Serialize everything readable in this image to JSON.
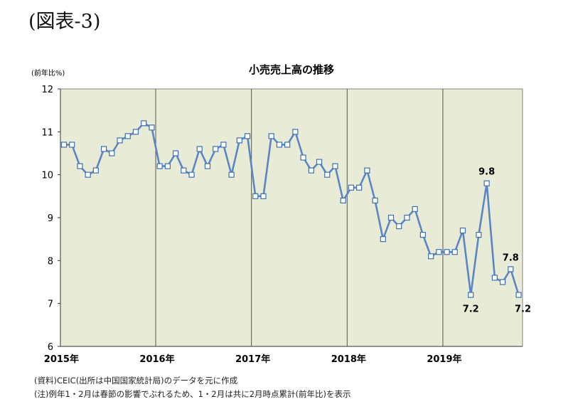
{
  "figure_label": "(図表-3)",
  "notes": [
    "(資料)CEIC(出所は中国国家統計局)のデータを元に作成",
    "(注)例年1・2月は春節の影響でぶれるため、1・2月は共に2月時点累計(前年比)を表示"
  ],
  "colors": {
    "plot_background": "#e8ecd6",
    "line": "#5b86c5",
    "marker_fill": "#ffffff",
    "marker_stroke": "#3d6fb7",
    "axis": "#333333",
    "year_divider": "#555555"
  },
  "chart_data": {
    "type": "line",
    "title": "小売売上高の推移",
    "ylabel": "(前年比%)",
    "ylim": [
      6,
      12
    ],
    "yticks": [
      6,
      7,
      8,
      9,
      10,
      11,
      12
    ],
    "x_tick_labels": [
      "2015年",
      "2016年",
      "2017年",
      "2018年",
      "2019年"
    ],
    "x_tick_index": [
      0,
      12,
      24,
      36,
      48
    ],
    "year_dividers_at_index": [
      12,
      24,
      36,
      48
    ],
    "grid": false,
    "legend": "none",
    "x": [
      "2015-01",
      "2015-02",
      "2015-03",
      "2015-04",
      "2015-05",
      "2015-06",
      "2015-07",
      "2015-08",
      "2015-09",
      "2015-10",
      "2015-11",
      "2015-12",
      "2016-01",
      "2016-02",
      "2016-03",
      "2016-04",
      "2016-05",
      "2016-06",
      "2016-07",
      "2016-08",
      "2016-09",
      "2016-10",
      "2016-11",
      "2016-12",
      "2017-01",
      "2017-02",
      "2017-03",
      "2017-04",
      "2017-05",
      "2017-06",
      "2017-07",
      "2017-08",
      "2017-09",
      "2017-10",
      "2017-11",
      "2017-12",
      "2018-01",
      "2018-02",
      "2018-03",
      "2018-04",
      "2018-05",
      "2018-06",
      "2018-07",
      "2018-08",
      "2018-09",
      "2018-10",
      "2018-11",
      "2018-12",
      "2019-01",
      "2019-02",
      "2019-03",
      "2019-04",
      "2019-05",
      "2019-06",
      "2019-07",
      "2019-08",
      "2019-09",
      "2019-10"
    ],
    "values": [
      10.7,
      10.7,
      10.2,
      10.0,
      10.1,
      10.6,
      10.5,
      10.8,
      10.9,
      11.0,
      11.2,
      11.1,
      10.2,
      10.2,
      10.5,
      10.1,
      10.0,
      10.6,
      10.2,
      10.6,
      10.7,
      10.0,
      10.8,
      10.9,
      9.5,
      9.5,
      10.9,
      10.7,
      10.7,
      11.0,
      10.4,
      10.1,
      10.3,
      10.0,
      10.2,
      9.4,
      9.7,
      9.7,
      10.1,
      9.4,
      8.5,
      9.0,
      8.8,
      9.0,
      9.2,
      8.6,
      8.1,
      8.2,
      8.2,
      8.2,
      8.7,
      7.2,
      8.6,
      9.8,
      7.6,
      7.5,
      7.8,
      7.2
    ],
    "data_labels": [
      {
        "x": "2019-04",
        "text": "7.2",
        "position": "below"
      },
      {
        "x": "2019-06",
        "text": "9.8",
        "position": "above"
      },
      {
        "x": "2019-09",
        "text": "7.8",
        "position": "above"
      },
      {
        "x": "2019-10",
        "text": "7.2",
        "position": "below-right"
      }
    ]
  }
}
